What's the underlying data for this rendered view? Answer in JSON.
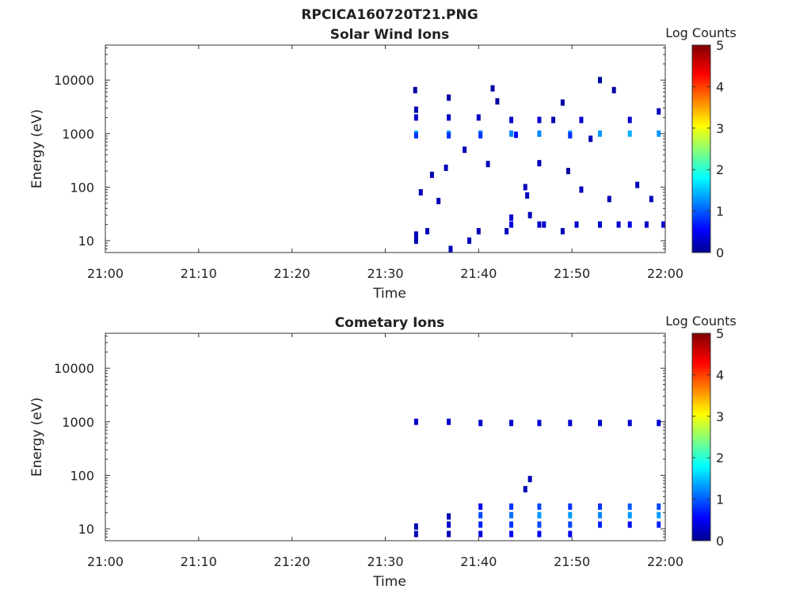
{
  "figure_title": "RPCICA160720T21.PNG",
  "chart_data": [
    {
      "type": "heatmap",
      "title": "Solar Wind Ions",
      "xlabel": "Time",
      "ylabel": "Energy (eV)",
      "colorbar_label": "Log Counts",
      "x_ticks": [
        "21:00",
        "21:10",
        "21:20",
        "21:30",
        "21:40",
        "21:50",
        "22:00"
      ],
      "y_ticks": [
        "10",
        "100",
        "1000",
        "10000"
      ],
      "colorbar_ticks": [
        "0",
        "1",
        "2",
        "3",
        "4",
        "5"
      ],
      "y_scale": "log",
      "xlim": [
        "21:00",
        "22:00"
      ],
      "ylim": [
        6,
        45000
      ],
      "clim": [
        0,
        5
      ],
      "colormap": "jet",
      "cells": [
        {
          "t": "21:33.3",
          "e": 1000,
          "v": 1.5
        },
        {
          "t": "21:33.3",
          "e": 930,
          "v": 0.8
        },
        {
          "t": "21:33.3",
          "e": 2000,
          "v": 0.3
        },
        {
          "t": "21:33.3",
          "e": 2800,
          "v": 0.2
        },
        {
          "t": "21:33.2",
          "e": 6500,
          "v": 0.1
        },
        {
          "t": "21:33.3",
          "e": 10,
          "v": 0.2
        },
        {
          "t": "21:33.3",
          "e": 13,
          "v": 0.2
        },
        {
          "t": "21:33.8",
          "e": 80,
          "v": 0.2
        },
        {
          "t": "21:34.5",
          "e": 15,
          "v": 0.2
        },
        {
          "t": "21:35.0",
          "e": 170,
          "v": 0.2
        },
        {
          "t": "21:35.7",
          "e": 55,
          "v": 0.2
        },
        {
          "t": "21:36.5",
          "e": 230,
          "v": 0.2
        },
        {
          "t": "21:36.8",
          "e": 1000,
          "v": 1.4
        },
        {
          "t": "21:36.8",
          "e": 930,
          "v": 0.8
        },
        {
          "t": "21:36.8",
          "e": 2000,
          "v": 0.3
        },
        {
          "t": "21:36.8",
          "e": 4700,
          "v": 0.1
        },
        {
          "t": "21:37.0",
          "e": 7,
          "v": 0.2
        },
        {
          "t": "21:38.5",
          "e": 500,
          "v": 0.2
        },
        {
          "t": "21:39.0",
          "e": 10,
          "v": 0.2
        },
        {
          "t": "21:40.0",
          "e": 15,
          "v": 0.2
        },
        {
          "t": "21:40.0",
          "e": 2000,
          "v": 0.3
        },
        {
          "t": "21:40.2",
          "e": 1000,
          "v": 1.2
        },
        {
          "t": "21:40.2",
          "e": 930,
          "v": 0.8
        },
        {
          "t": "21:41.0",
          "e": 270,
          "v": 0.2
        },
        {
          "t": "21:41.5",
          "e": 7000,
          "v": 0.1
        },
        {
          "t": "21:42.0",
          "e": 4000,
          "v": 0.1
        },
        {
          "t": "21:43.0",
          "e": 15,
          "v": 0.2
        },
        {
          "t": "21:43.5",
          "e": 20,
          "v": 0.4
        },
        {
          "t": "21:43.5",
          "e": 27,
          "v": 0.3
        },
        {
          "t": "21:43.5",
          "e": 1000,
          "v": 1.2
        },
        {
          "t": "21:43.5",
          "e": 1800,
          "v": 0.3
        },
        {
          "t": "21:44.0",
          "e": 950,
          "v": 0.6
        },
        {
          "t": "21:45.0",
          "e": 100,
          "v": 0.2
        },
        {
          "t": "21:45.2",
          "e": 70,
          "v": 0.2
        },
        {
          "t": "21:45.5",
          "e": 30,
          "v": 0.2
        },
        {
          "t": "21:46.5",
          "e": 1000,
          "v": 1.2
        },
        {
          "t": "21:46.5",
          "e": 1800,
          "v": 0.3
        },
        {
          "t": "21:46.5",
          "e": 20,
          "v": 0.3
        },
        {
          "t": "21:46.5",
          "e": 280,
          "v": 0.2
        },
        {
          "t": "21:47.0",
          "e": 20,
          "v": 0.3
        },
        {
          "t": "21:48.0",
          "e": 1800,
          "v": 0.2
        },
        {
          "t": "21:49.0",
          "e": 3800,
          "v": 0.1
        },
        {
          "t": "21:49.0",
          "e": 15,
          "v": 0.2
        },
        {
          "t": "21:49.6",
          "e": 200,
          "v": 0.1
        },
        {
          "t": "21:49.8",
          "e": 1000,
          "v": 1.3
        },
        {
          "t": "21:49.8",
          "e": 930,
          "v": 0.8
        },
        {
          "t": "21:50.5",
          "e": 20,
          "v": 0.3
        },
        {
          "t": "21:51.0",
          "e": 1800,
          "v": 0.3
        },
        {
          "t": "21:51.0",
          "e": 90,
          "v": 0.2
        },
        {
          "t": "21:52.0",
          "e": 800,
          "v": 0.2
        },
        {
          "t": "21:53.0",
          "e": 1000,
          "v": 1.3
        },
        {
          "t": "21:53.0",
          "e": 10000,
          "v": 0.1
        },
        {
          "t": "21:53.0",
          "e": 20,
          "v": 0.3
        },
        {
          "t": "21:54.0",
          "e": 60,
          "v": 0.2
        },
        {
          "t": "21:54.5",
          "e": 6500,
          "v": 0.1
        },
        {
          "t": "21:55.0",
          "e": 20,
          "v": 0.3
        },
        {
          "t": "21:56.2",
          "e": 1000,
          "v": 1.4
        },
        {
          "t": "21:56.2",
          "e": 1800,
          "v": 0.3
        },
        {
          "t": "21:56.2",
          "e": 20,
          "v": 0.4
        },
        {
          "t": "21:57.0",
          "e": 110,
          "v": 0.2
        },
        {
          "t": "21:58.0",
          "e": 20,
          "v": 0.3
        },
        {
          "t": "21:58.5",
          "e": 60,
          "v": 0.2
        },
        {
          "t": "21:59.3",
          "e": 1000,
          "v": 1.3
        },
        {
          "t": "21:59.3",
          "e": 2600,
          "v": 0.2
        },
        {
          "t": "21:59.8",
          "e": 20,
          "v": 0.4
        }
      ]
    },
    {
      "type": "heatmap",
      "title": "Cometary Ions",
      "xlabel": "Time",
      "ylabel": "Energy (eV)",
      "colorbar_label": "Log Counts",
      "x_ticks": [
        "21:00",
        "21:10",
        "21:20",
        "21:30",
        "21:40",
        "21:50",
        "22:00"
      ],
      "y_ticks": [
        "10",
        "100",
        "1000",
        "10000"
      ],
      "colorbar_ticks": [
        "0",
        "1",
        "2",
        "3",
        "4",
        "5"
      ],
      "y_scale": "log",
      "xlim": [
        "21:00",
        "22:00"
      ],
      "ylim": [
        6,
        45000
      ],
      "clim": [
        0,
        5
      ],
      "colormap": "jet",
      "cells": [
        {
          "t": "21:33.3",
          "e": 1000,
          "v": 0.3
        },
        {
          "t": "21:36.8",
          "e": 1000,
          "v": 0.3
        },
        {
          "t": "21:40.2",
          "e": 950,
          "v": 0.3
        },
        {
          "t": "21:43.5",
          "e": 950,
          "v": 0.3
        },
        {
          "t": "21:46.5",
          "e": 950,
          "v": 0.3
        },
        {
          "t": "21:49.8",
          "e": 950,
          "v": 0.3
        },
        {
          "t": "21:53.0",
          "e": 950,
          "v": 0.3
        },
        {
          "t": "21:56.2",
          "e": 950,
          "v": 0.3
        },
        {
          "t": "21:59.3",
          "e": 950,
          "v": 0.3
        },
        {
          "t": "21:45.0",
          "e": 55,
          "v": 0.2
        },
        {
          "t": "21:45.5",
          "e": 85,
          "v": 0.2
        },
        {
          "t": "21:33.3",
          "e": 8,
          "v": 0.2
        },
        {
          "t": "21:33.3",
          "e": 11,
          "v": 0.2
        },
        {
          "t": "21:36.8",
          "e": 8,
          "v": 0.2
        },
        {
          "t": "21:36.8",
          "e": 12,
          "v": 0.3
        },
        {
          "t": "21:36.8",
          "e": 17,
          "v": 0.2
        },
        {
          "t": "21:40.2",
          "e": 8,
          "v": 0.4
        },
        {
          "t": "21:40.2",
          "e": 12,
          "v": 0.7
        },
        {
          "t": "21:40.2",
          "e": 18,
          "v": 0.9
        },
        {
          "t": "21:40.2",
          "e": 26,
          "v": 0.5
        },
        {
          "t": "21:43.5",
          "e": 8,
          "v": 0.5
        },
        {
          "t": "21:43.5",
          "e": 12,
          "v": 0.8
        },
        {
          "t": "21:43.5",
          "e": 18,
          "v": 1.1
        },
        {
          "t": "21:43.5",
          "e": 26,
          "v": 0.8
        },
        {
          "t": "21:46.5",
          "e": 8,
          "v": 0.5
        },
        {
          "t": "21:46.5",
          "e": 12,
          "v": 0.9
        },
        {
          "t": "21:46.5",
          "e": 18,
          "v": 1.3
        },
        {
          "t": "21:46.5",
          "e": 26,
          "v": 0.9
        },
        {
          "t": "21:49.8",
          "e": 8,
          "v": 0.5
        },
        {
          "t": "21:49.8",
          "e": 12,
          "v": 0.9
        },
        {
          "t": "21:49.8",
          "e": 18,
          "v": 1.3
        },
        {
          "t": "21:49.8",
          "e": 26,
          "v": 0.8
        },
        {
          "t": "21:53.0",
          "e": 12,
          "v": 0.7
        },
        {
          "t": "21:53.0",
          "e": 18,
          "v": 1.2
        },
        {
          "t": "21:53.0",
          "e": 26,
          "v": 0.8
        },
        {
          "t": "21:56.2",
          "e": 12,
          "v": 0.6
        },
        {
          "t": "21:56.2",
          "e": 18,
          "v": 1.3
        },
        {
          "t": "21:56.2",
          "e": 26,
          "v": 1.0
        },
        {
          "t": "21:59.3",
          "e": 12,
          "v": 0.7
        },
        {
          "t": "21:59.3",
          "e": 18,
          "v": 1.3
        },
        {
          "t": "21:59.3",
          "e": 26,
          "v": 0.9
        }
      ]
    }
  ]
}
